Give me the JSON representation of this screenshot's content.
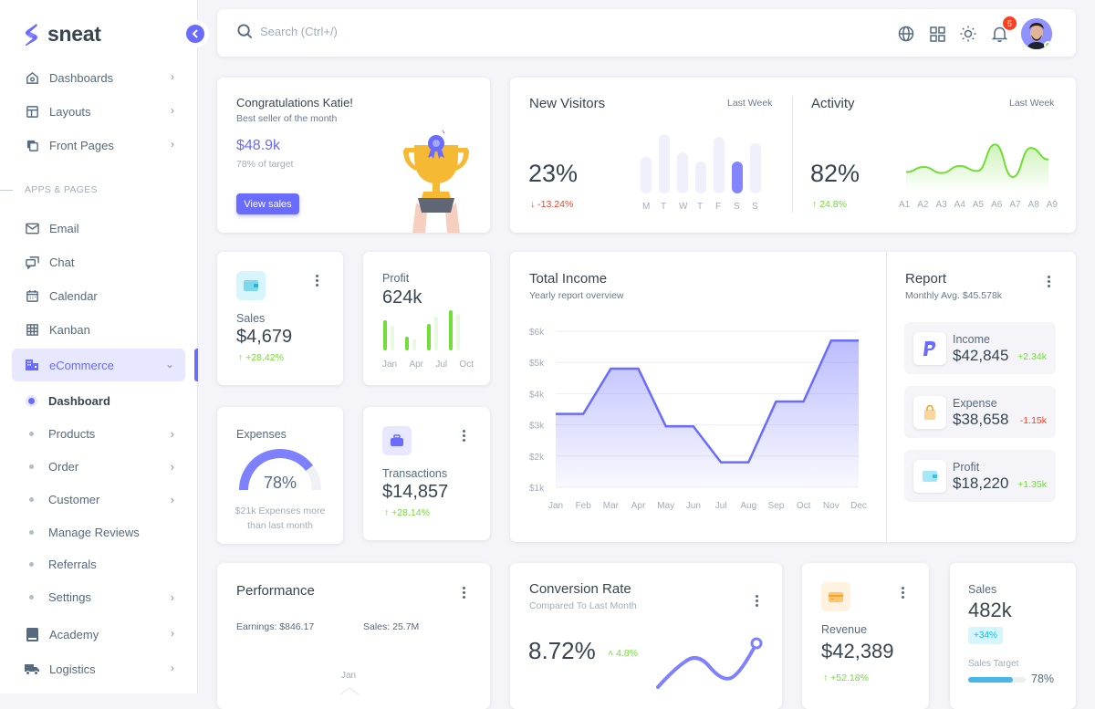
{
  "brand": {
    "name": "sneat",
    "accent": "#696cff"
  },
  "sidebar": {
    "top_items": [
      {
        "label": "Dashboards",
        "icon": "home-icon"
      },
      {
        "label": "Layouts",
        "icon": "layout-icon"
      },
      {
        "label": "Front Pages",
        "icon": "copy-icon"
      }
    ],
    "section_label": "APPS & PAGES",
    "app_items": [
      {
        "label": "Email",
        "icon": "mail-icon"
      },
      {
        "label": "Chat",
        "icon": "chat-icon"
      },
      {
        "label": "Calendar",
        "icon": "calendar-icon"
      },
      {
        "label": "Kanban",
        "icon": "grid-icon"
      }
    ],
    "ecommerce": {
      "label": "eCommerce",
      "icon": "store-icon"
    },
    "ecommerce_sub": [
      {
        "label": "Dashboard"
      },
      {
        "label": "Products"
      },
      {
        "label": "Order"
      },
      {
        "label": "Customer"
      },
      {
        "label": "Manage Reviews"
      },
      {
        "label": "Referrals"
      },
      {
        "label": "Settings"
      }
    ],
    "bottom_items": [
      {
        "label": "Academy",
        "icon": "book-icon"
      },
      {
        "label": "Logistics",
        "icon": "truck-icon"
      }
    ]
  },
  "navbar": {
    "search_placeholder": "Search (Ctrl+/)",
    "notification_count": "5"
  },
  "congrats": {
    "title": "Congratulations Katie!",
    "subtitle": "Best seller of the month",
    "amount": "$48.9k",
    "target": "78% of target",
    "button": "View sales"
  },
  "new_visitors": {
    "title": "New Visitors",
    "period": "Last Week",
    "value": "23%",
    "change": "-13.24%",
    "days": [
      "M",
      "T",
      "W",
      "T",
      "F",
      "S",
      "S"
    ]
  },
  "activity": {
    "title": "Activity",
    "period": "Last Week",
    "value": "82%",
    "change": "24.8%",
    "labels": [
      "A1",
      "A2",
      "A3",
      "A4",
      "A5",
      "A6",
      "A7",
      "A8",
      "A9"
    ]
  },
  "sales_card": {
    "label": "Sales",
    "value": "$4,679",
    "change": "+28.42%"
  },
  "profit_card": {
    "label": "Profit",
    "value": "624k",
    "months": [
      "Jan",
      "Apr",
      "Jul",
      "Oct"
    ]
  },
  "expenses_card": {
    "label": "Expenses",
    "value": "78%",
    "note_line1": "$21k Expenses more",
    "note_line2": "than last month"
  },
  "transactions_card": {
    "label": "Transactions",
    "value": "$14,857",
    "change": "+28.14%"
  },
  "total_income": {
    "title": "Total Income",
    "subtitle": "Yearly report overview"
  },
  "report": {
    "title": "Report",
    "subtitle": "Monthly Avg. $45.578k",
    "items": [
      {
        "label": "Income",
        "value": "$42,845",
        "change": "+2.34k"
      },
      {
        "label": "Expense",
        "value": "$38,658",
        "change": "-1.15k"
      },
      {
        "label": "Profit",
        "value": "$18,220",
        "change": "+1.35k"
      }
    ]
  },
  "performance": {
    "title": "Performance",
    "earnings": "Earnings: $846.17",
    "sales": "Sales: 25.7M",
    "radar_label": "Jan"
  },
  "conversion": {
    "title": "Conversion Rate",
    "subtitle": "Compared To Last Month",
    "value": "8.72%",
    "change": "4.8%"
  },
  "revenue": {
    "label": "Revenue",
    "value": "$42,389",
    "change": "+52.18%"
  },
  "sales_target": {
    "label": "Sales",
    "value": "482k",
    "badge": "+34%",
    "target_label": "Sales Target",
    "target_pct": "78%"
  },
  "chart_data": [
    {
      "type": "line",
      "title": "Total Income",
      "subtitle": "Yearly report overview",
      "categories": [
        "Jan",
        "Feb",
        "Mar",
        "Apr",
        "May",
        "Jun",
        "Jul",
        "Aug",
        "Sep",
        "Oct",
        "Nov",
        "Dec"
      ],
      "values": [
        3350,
        3350,
        4800,
        4800,
        2950,
        2950,
        1800,
        1800,
        3750,
        3750,
        5700,
        5700
      ],
      "yticks": [
        "$1k",
        "$2k",
        "$3k",
        "$4k",
        "$5k",
        "$6k"
      ],
      "ylim": [
        1000,
        6000
      ],
      "grid": true
    },
    {
      "type": "bar",
      "title": "New Visitors",
      "categories": [
        "M",
        "T",
        "W",
        "T",
        "F",
        "S",
        "S"
      ],
      "values": [
        40,
        65,
        45,
        35,
        62,
        35,
        55
      ],
      "highlight_index": 5
    },
    {
      "type": "area",
      "title": "Activity",
      "categories": [
        "A1",
        "A2",
        "A3",
        "A4",
        "A5",
        "A6",
        "A7",
        "A8",
        "A9"
      ],
      "values": [
        30,
        40,
        28,
        42,
        32,
        85,
        20,
        78,
        55
      ]
    },
    {
      "type": "bar",
      "title": "Profit",
      "categories": [
        "Jan",
        "Apr",
        "Jul",
        "Oct"
      ],
      "series": [
        {
          "name": "current",
          "values": [
            60,
            28,
            52,
            80
          ]
        },
        {
          "name": "previous",
          "values": [
            50,
            22,
            68,
            72
          ]
        }
      ]
    },
    {
      "type": "pie",
      "title": "Expenses",
      "values": [
        78,
        22
      ],
      "labels": [
        "used",
        "remaining"
      ]
    }
  ]
}
